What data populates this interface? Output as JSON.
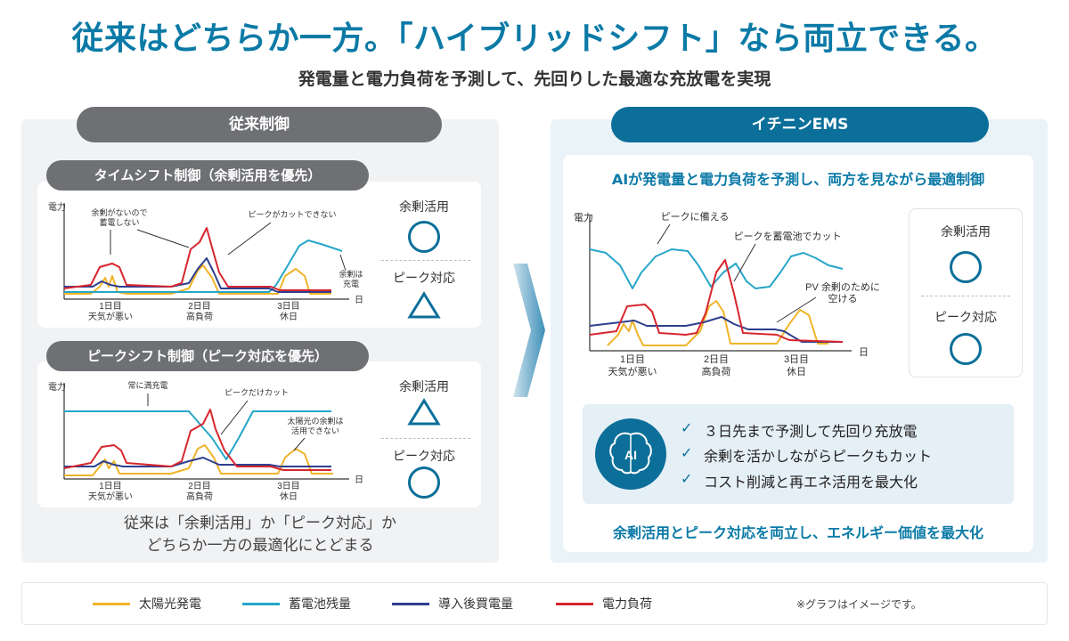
{
  "title": "従来はどちらか一方。「ハイブリッドシフト」なら両立できる。",
  "subtitle": "発電量と電力負荷を予測して、先回りした最適な充放電を実現",
  "left": {
    "header": "従来制御",
    "chart1": {
      "title": "タイムシフト制御（余剰活用を優先）",
      "ylabel": "電力",
      "xlabel": "日",
      "days": [
        "1日目",
        "2日目",
        "3日目"
      ],
      "day_notes": [
        "天気が悪い",
        "高負荷",
        "休日"
      ],
      "ann1": "余剰がないので",
      "ann1b": "蓄電しない",
      "ann2": "ピークがカットできない",
      "ann3": "余剰は",
      "ann3b": "充電",
      "status1_label": "余剰活用",
      "status1_symbol": "circle",
      "status2_label": "ピーク対応",
      "status2_symbol": "triangle"
    },
    "chart2": {
      "title": "ピークシフト制御（ピーク対応を優先）",
      "ylabel": "電力",
      "xlabel": "日",
      "days": [
        "1日目",
        "2日目",
        "3日目"
      ],
      "day_notes": [
        "天気が悪い",
        "高負荷",
        "休日"
      ],
      "ann1": "常に満充電",
      "ann2": "ピークだけカット",
      "ann3": "太陽光の余剰は",
      "ann3b": "活用できない",
      "status1_label": "余剰活用",
      "status1_symbol": "triangle",
      "status2_label": "ピーク対応",
      "status2_symbol": "circle"
    },
    "note_line1": "従来は「余剰活用」か「ピーク対応」か",
    "note_line2": "どちらか一方の最適化にとどまる"
  },
  "right": {
    "header": "イチニンEMS",
    "subheader": "AIが発電量と電力負荷を予測し、両方を見ながら最適制御",
    "chart": {
      "ylabel": "電力",
      "xlabel": "日",
      "days": [
        "1日目",
        "2日目",
        "3日目"
      ],
      "day_notes": [
        "天気が悪い",
        "高負荷",
        "休日"
      ],
      "ann1": "ピークに備える",
      "ann2": "ピークを蓄電池でカット",
      "ann3": "PV 余剰のために",
      "ann3b": "空ける"
    },
    "status1_label": "余剰活用",
    "status2_label": "ピーク対応",
    "ai_label": "AI",
    "features": [
      "３日先まで予測して先回り充放電",
      "余剰を活かしながらピークもカット",
      "コスト削減と再エネ活用を最大化"
    ],
    "bottom": "余剰活用とピーク対応を両立し、エネルギー価値を最大化"
  },
  "legend": {
    "items": [
      {
        "label": "太陽光発電",
        "color": "#f0b429"
      },
      {
        "label": "蓄電池残量",
        "color": "#26a6c9"
      },
      {
        "label": "導入後買電量",
        "color": "#2e3f8f"
      },
      {
        "label": "電力負荷",
        "color": "#d7262e"
      }
    ],
    "note": "※グラフはイメージです。"
  },
  "colors": {
    "solar": "#f0b429",
    "battery": "#26a6c9",
    "grid": "#2e3f8f",
    "load": "#d7262e",
    "accent": "#0b6f99"
  }
}
